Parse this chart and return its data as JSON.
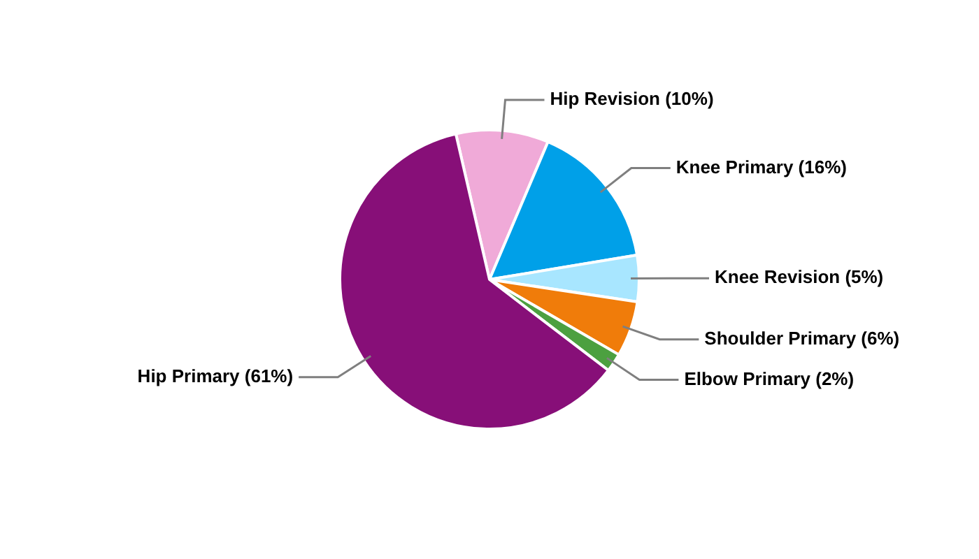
{
  "chart_data": {
    "type": "pie",
    "categories": [
      "Hip Revision (10%)",
      "Knee Primary (16%)",
      "Knee Revision (5%)",
      "Shoulder Primary (6%)",
      "Elbow Primary (2%)",
      "Hip Primary (61%)"
    ],
    "values": [
      10,
      16,
      5,
      6,
      2,
      61
    ],
    "colors": [
      "#f0aad8",
      "#00a0e8",
      "#a8e6ff",
      "#f07c0a",
      "#4ca040",
      "#870f78"
    ],
    "legend": false
  }
}
